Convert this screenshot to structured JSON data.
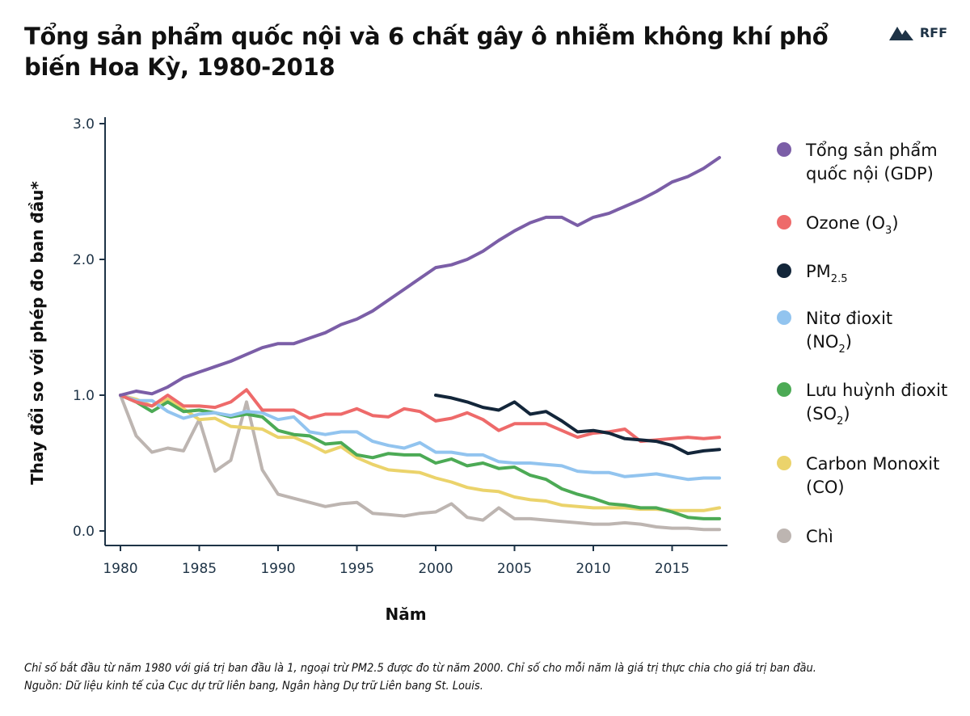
{
  "title": "Tổng sản phẩm quốc nội và 6 chất gây ô nhiễm không khí phổ biến Hoa Kỳ, 1980-2018",
  "logo": {
    "text": "RFF",
    "icon": "mountain-logo-icon"
  },
  "footnote": {
    "line1": "Chỉ số bắt đầu từ năm 1980 với giá trị ban đầu là 1, ngoại trừ PM2.5 được đo từ năm 2000. Chỉ số cho mỗi năm là giá trị thực chia cho giá trị ban đầu.",
    "line2": "Nguồn: Dữ liệu kinh tế của Cục dự trữ liên bang, Ngân hàng Dự trữ Liên bang St. Louis."
  },
  "chart_data": {
    "type": "line",
    "xlabel": "Năm",
    "ylabel": "Thay đổi so với phép đo ban đầu*",
    "xlim": [
      1980,
      2018
    ],
    "ylim": [
      0,
      3
    ],
    "xticks": [
      "1980",
      "1985",
      "1990",
      "1995",
      "2000",
      "2005",
      "2010",
      "2015"
    ],
    "yticks": [
      "0.0",
      "1.0",
      "2.0",
      "3.0"
    ],
    "legend_position": "right",
    "series": [
      {
        "name": "Tổng sản phẩm quốc nội (GDP)",
        "legend_lines": [
          "Tổng sản phẩm",
          "quốc nội (GDP)"
        ],
        "color": "#7b5ea7",
        "start_year": 1980,
        "values": [
          1.0,
          1.03,
          1.01,
          1.06,
          1.13,
          1.17,
          1.21,
          1.25,
          1.3,
          1.35,
          1.38,
          1.38,
          1.42,
          1.46,
          1.52,
          1.56,
          1.62,
          1.7,
          1.78,
          1.86,
          1.94,
          1.96,
          2.0,
          2.06,
          2.14,
          2.21,
          2.27,
          2.31,
          2.31,
          2.25,
          2.31,
          2.34,
          2.39,
          2.44,
          2.5,
          2.57,
          2.61,
          2.67,
          2.75
        ]
      },
      {
        "name": "Ozone (O3)",
        "legend_lines": [
          "Ozone (O",
          "3",
          ")"
        ],
        "color": "#ee6a6a",
        "start_year": 1980,
        "values": [
          1.0,
          0.95,
          0.92,
          1.0,
          0.92,
          0.92,
          0.91,
          0.95,
          1.04,
          0.89,
          0.89,
          0.89,
          0.83,
          0.86,
          0.86,
          0.9,
          0.85,
          0.84,
          0.9,
          0.88,
          0.81,
          0.83,
          0.87,
          0.82,
          0.74,
          0.79,
          0.79,
          0.79,
          0.74,
          0.69,
          0.72,
          0.73,
          0.75,
          0.66,
          0.67,
          0.68,
          0.69,
          0.68,
          0.69
        ]
      },
      {
        "name": "PM2.5",
        "legend_lines": [
          "PM",
          "2.5",
          ""
        ],
        "color": "#13263a",
        "start_year": 2000,
        "values": [
          1.0,
          0.98,
          0.95,
          0.91,
          0.89,
          0.95,
          0.86,
          0.88,
          0.81,
          0.73,
          0.74,
          0.72,
          0.68,
          0.67,
          0.66,
          0.63,
          0.57,
          0.59,
          0.6
        ]
      },
      {
        "name": "Nitơ đioxit (NO2)",
        "legend_lines": [
          "Nitơ đioxit",
          "(NO",
          "2",
          ")"
        ],
        "color": "#92c4ef",
        "start_year": 1980,
        "values": [
          1.0,
          0.96,
          0.96,
          0.88,
          0.83,
          0.86,
          0.87,
          0.85,
          0.88,
          0.87,
          0.82,
          0.84,
          0.73,
          0.71,
          0.73,
          0.73,
          0.66,
          0.63,
          0.61,
          0.65,
          0.58,
          0.58,
          0.56,
          0.56,
          0.51,
          0.5,
          0.5,
          0.49,
          0.48,
          0.44,
          0.43,
          0.43,
          0.4,
          0.41,
          0.42,
          0.4,
          0.38,
          0.39,
          0.39
        ]
      },
      {
        "name": "Lưu huỳnh đioxit (SO2)",
        "legend_lines": [
          "Lưu huỳnh đioxit",
          "(SO",
          "2",
          ")"
        ],
        "color": "#4caa55",
        "start_year": 1980,
        "values": [
          1.0,
          0.95,
          0.88,
          0.95,
          0.88,
          0.89,
          0.87,
          0.84,
          0.86,
          0.84,
          0.74,
          0.71,
          0.7,
          0.64,
          0.65,
          0.56,
          0.54,
          0.57,
          0.56,
          0.56,
          0.5,
          0.53,
          0.48,
          0.5,
          0.46,
          0.47,
          0.41,
          0.38,
          0.31,
          0.27,
          0.24,
          0.2,
          0.19,
          0.17,
          0.17,
          0.14,
          0.1,
          0.09,
          0.09
        ]
      },
      {
        "name": "Carbon Monoxit (CO)",
        "legend_lines": [
          "Carbon Monoxit",
          "(CO)"
        ],
        "color": "#ebd36b",
        "start_year": 1980,
        "values": [
          1.0,
          0.97,
          0.92,
          0.97,
          0.9,
          0.82,
          0.83,
          0.77,
          0.76,
          0.75,
          0.69,
          0.69,
          0.64,
          0.58,
          0.62,
          0.54,
          0.49,
          0.45,
          0.44,
          0.43,
          0.39,
          0.36,
          0.32,
          0.3,
          0.29,
          0.25,
          0.23,
          0.22,
          0.19,
          0.18,
          0.17,
          0.17,
          0.17,
          0.16,
          0.16,
          0.15,
          0.15,
          0.15,
          0.17
        ]
      },
      {
        "name": "Chì",
        "legend_lines": [
          "Chì"
        ],
        "color": "#bdb5b1",
        "start_year": 1980,
        "values": [
          1.0,
          0.7,
          0.58,
          0.61,
          0.59,
          0.82,
          0.44,
          0.52,
          0.95,
          0.45,
          0.27,
          0.24,
          0.21,
          0.18,
          0.2,
          0.21,
          0.13,
          0.12,
          0.11,
          0.13,
          0.14,
          0.2,
          0.1,
          0.08,
          0.17,
          0.09,
          0.09,
          0.08,
          0.07,
          0.06,
          0.05,
          0.05,
          0.06,
          0.05,
          0.03,
          0.02,
          0.02,
          0.01,
          0.01
        ]
      }
    ]
  }
}
